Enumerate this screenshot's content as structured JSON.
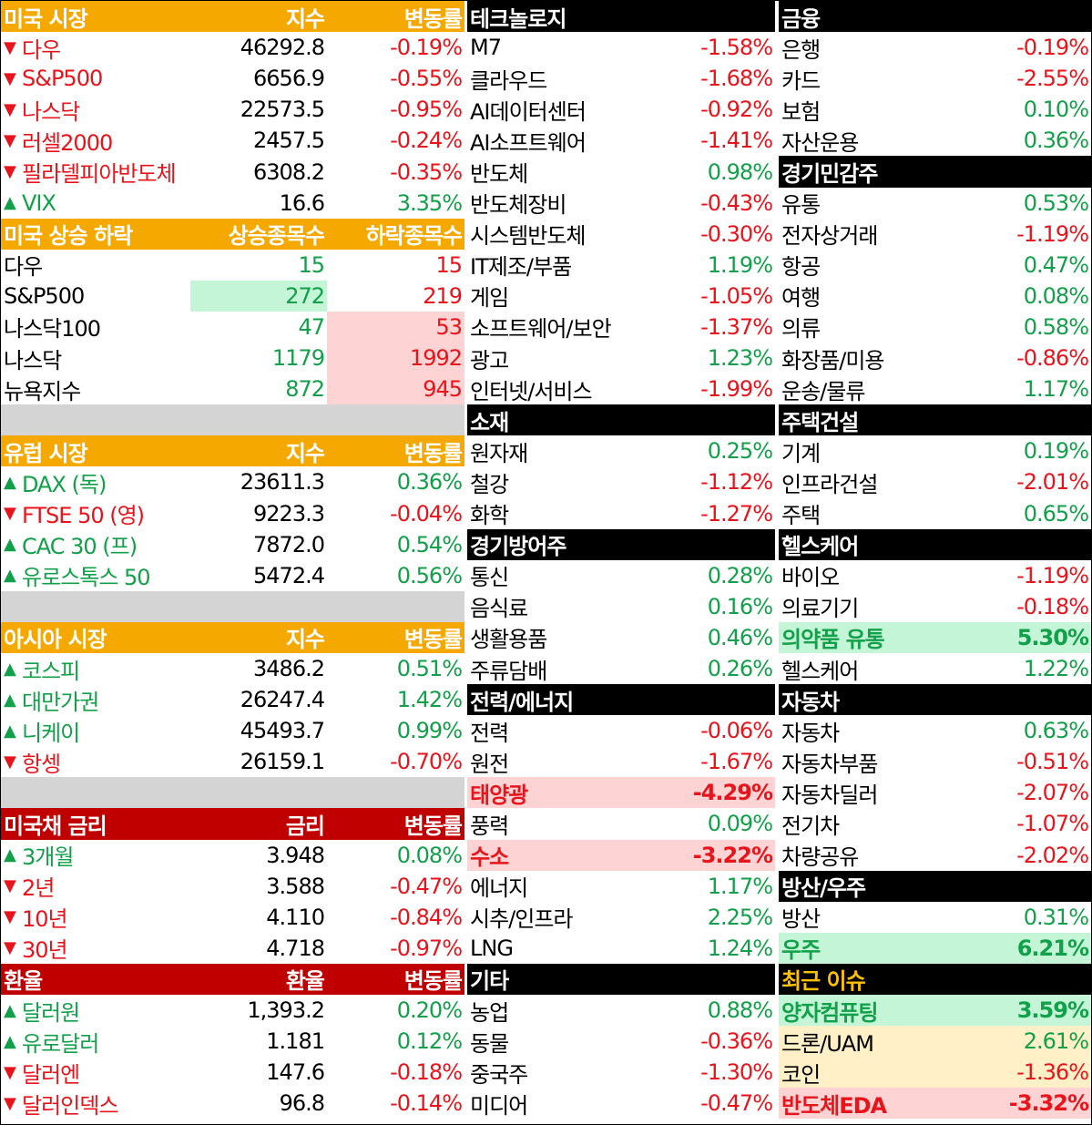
{
  "left": [
    {
      "kind": "header",
      "color": "orange",
      "cells": [
        "미국 시장",
        "지수",
        "변동률"
      ]
    },
    {
      "kind": "row",
      "dir": "down",
      "cells": [
        "다우",
        "46292.8",
        "-0.19%"
      ]
    },
    {
      "kind": "row",
      "dir": "down",
      "cells": [
        "S&P500",
        "6656.9",
        "-0.55%"
      ]
    },
    {
      "kind": "row",
      "dir": "down",
      "cells": [
        "나스닥",
        "22573.5",
        "-0.95%"
      ]
    },
    {
      "kind": "row",
      "dir": "down",
      "cells": [
        "러셀2000",
        "2457.5",
        "-0.24%"
      ]
    },
    {
      "kind": "row",
      "dir": "down",
      "cells": [
        "필라델피아반도체",
        "6308.2",
        "-0.35%"
      ]
    },
    {
      "kind": "row",
      "dir": "up",
      "cells": [
        "VIX",
        "16.6",
        "3.35%"
      ]
    },
    {
      "kind": "header",
      "color": "orange",
      "cells": [
        "미국 상승 하락",
        "상승종목수",
        "하락종목수"
      ]
    },
    {
      "kind": "breadth",
      "cells": [
        "다우",
        "15",
        "15"
      ],
      "hl": [
        null,
        null
      ]
    },
    {
      "kind": "breadth",
      "cells": [
        "S&P500",
        "272",
        "219"
      ],
      "hl": [
        "green",
        null
      ]
    },
    {
      "kind": "breadth",
      "cells": [
        "나스닥100",
        "47",
        "53"
      ],
      "hl": [
        null,
        "pink"
      ]
    },
    {
      "kind": "breadth",
      "cells": [
        "나스닥",
        "1179",
        "1992"
      ],
      "hl": [
        null,
        "pink"
      ]
    },
    {
      "kind": "breadth",
      "cells": [
        "뉴욕지수",
        "872",
        "945"
      ],
      "hl": [
        null,
        "pink"
      ]
    },
    {
      "kind": "spacer"
    },
    {
      "kind": "header",
      "color": "orange",
      "cells": [
        "유럽 시장",
        "지수",
        "변동률"
      ]
    },
    {
      "kind": "row",
      "dir": "up",
      "cells": [
        "DAX (독)",
        "23611.3",
        "0.36%"
      ]
    },
    {
      "kind": "row",
      "dir": "down",
      "cells": [
        "FTSE 50 (영)",
        "9223.3",
        "-0.04%"
      ]
    },
    {
      "kind": "row",
      "dir": "up",
      "cells": [
        "CAC 30 (프)",
        "7872.0",
        "0.54%"
      ]
    },
    {
      "kind": "row",
      "dir": "up",
      "cells": [
        "유로스톡스 50",
        "5472.4",
        "0.56%"
      ]
    },
    {
      "kind": "spacer"
    },
    {
      "kind": "header",
      "color": "orange",
      "cells": [
        "아시아 시장",
        "지수",
        "변동률"
      ]
    },
    {
      "kind": "row",
      "dir": "up",
      "cells": [
        "코스피",
        "3486.2",
        "0.51%"
      ]
    },
    {
      "kind": "row",
      "dir": "up",
      "cells": [
        "대만가권",
        "26247.4",
        "1.42%"
      ]
    },
    {
      "kind": "row",
      "dir": "up",
      "cells": [
        "니케이",
        "45493.7",
        "0.99%"
      ]
    },
    {
      "kind": "row",
      "dir": "down",
      "cells": [
        "항셍",
        "26159.1",
        "-0.70%"
      ]
    },
    {
      "kind": "spacer"
    },
    {
      "kind": "header",
      "color": "red",
      "cells": [
        "미국채 금리",
        "금리",
        "변동률"
      ]
    },
    {
      "kind": "row",
      "dir": "up",
      "cells": [
        "3개월",
        "3.948",
        "0.08%"
      ]
    },
    {
      "kind": "row",
      "dir": "down",
      "cells": [
        "2년",
        "3.588",
        "-0.47%"
      ]
    },
    {
      "kind": "row",
      "dir": "down",
      "cells": [
        "10년",
        "4.110",
        "-0.84%"
      ]
    },
    {
      "kind": "row",
      "dir": "down",
      "cells": [
        "30년",
        "4.718",
        "-0.97%"
      ]
    },
    {
      "kind": "header",
      "color": "red",
      "cells": [
        "환율",
        "환율",
        "변동률"
      ]
    },
    {
      "kind": "row",
      "dir": "up",
      "cells": [
        "달러원",
        "1,393.2",
        "0.20%"
      ]
    },
    {
      "kind": "row",
      "dir": "up",
      "cells": [
        "유로달러",
        "1.181",
        "0.12%"
      ]
    },
    {
      "kind": "row",
      "dir": "down",
      "cells": [
        "달러엔",
        "147.6",
        "-0.18%"
      ]
    },
    {
      "kind": "row",
      "dir": "down",
      "cells": [
        "달러인덱스",
        "96.8",
        "-0.14%"
      ]
    }
  ],
  "middle": [
    {
      "kind": "header",
      "cells": [
        "테크놀로지"
      ]
    },
    {
      "kind": "sector",
      "cells": [
        "M7",
        "-1.58%"
      ]
    },
    {
      "kind": "sector",
      "cells": [
        "클라우드",
        "-1.68%"
      ]
    },
    {
      "kind": "sector",
      "cells": [
        "AI데이터센터",
        "-0.92%"
      ]
    },
    {
      "kind": "sector",
      "cells": [
        "AI소프트웨어",
        "-1.41%"
      ]
    },
    {
      "kind": "sector",
      "cells": [
        "반도체",
        "0.98%"
      ]
    },
    {
      "kind": "sector",
      "cells": [
        "반도체장비",
        "-0.43%"
      ]
    },
    {
      "kind": "sector",
      "cells": [
        "시스템반도체",
        "-0.30%"
      ]
    },
    {
      "kind": "sector",
      "cells": [
        "IT제조/부품",
        "1.19%"
      ]
    },
    {
      "kind": "sector",
      "cells": [
        "게임",
        "-1.05%"
      ]
    },
    {
      "kind": "sector",
      "cells": [
        "소프트웨어/보안",
        "-1.37%"
      ]
    },
    {
      "kind": "sector",
      "cells": [
        "광고",
        "1.23%"
      ]
    },
    {
      "kind": "sector",
      "cells": [
        "인터넷/서비스",
        "-1.99%"
      ]
    },
    {
      "kind": "header",
      "cells": [
        "소재"
      ]
    },
    {
      "kind": "sector",
      "cells": [
        "원자재",
        "0.25%"
      ]
    },
    {
      "kind": "sector",
      "cells": [
        "철강",
        "-1.12%"
      ]
    },
    {
      "kind": "sector",
      "cells": [
        "화학",
        "-1.27%"
      ]
    },
    {
      "kind": "header",
      "cells": [
        "경기방어주"
      ]
    },
    {
      "kind": "sector",
      "cells": [
        "통신",
        "0.28%"
      ]
    },
    {
      "kind": "sector",
      "cells": [
        "음식료",
        "0.16%"
      ]
    },
    {
      "kind": "sector",
      "cells": [
        "생활용품",
        "0.46%"
      ]
    },
    {
      "kind": "sector",
      "cells": [
        "주류담배",
        "0.26%"
      ]
    },
    {
      "kind": "header",
      "cells": [
        "전력/에너지"
      ]
    },
    {
      "kind": "sector",
      "cells": [
        "전력",
        "-0.06%"
      ]
    },
    {
      "kind": "sector",
      "cells": [
        "원전",
        "-1.67%"
      ]
    },
    {
      "kind": "sector",
      "cells": [
        "태양광",
        "-4.29%"
      ],
      "hl": "pink"
    },
    {
      "kind": "sector",
      "cells": [
        "풍력",
        "0.09%"
      ]
    },
    {
      "kind": "sector",
      "cells": [
        "수소",
        "-3.22%"
      ],
      "hl": "pink"
    },
    {
      "kind": "sector",
      "cells": [
        "에너지",
        "1.17%"
      ]
    },
    {
      "kind": "sector",
      "cells": [
        "시추/인프라",
        "2.25%"
      ]
    },
    {
      "kind": "sector",
      "cells": [
        "LNG",
        "1.24%"
      ]
    },
    {
      "kind": "header",
      "cells": [
        "기타"
      ]
    },
    {
      "kind": "sector",
      "cells": [
        "농업",
        "0.88%"
      ]
    },
    {
      "kind": "sector",
      "cells": [
        "동물",
        "-0.36%"
      ]
    },
    {
      "kind": "sector",
      "cells": [
        "중국주",
        "-1.30%"
      ]
    },
    {
      "kind": "sector",
      "cells": [
        "미디어",
        "-0.47%"
      ]
    }
  ],
  "right": [
    {
      "kind": "header",
      "cells": [
        "금융"
      ]
    },
    {
      "kind": "sector",
      "cells": [
        "은행",
        "-0.19%"
      ]
    },
    {
      "kind": "sector",
      "cells": [
        "카드",
        "-2.55%"
      ]
    },
    {
      "kind": "sector",
      "cells": [
        "보험",
        "0.10%"
      ]
    },
    {
      "kind": "sector",
      "cells": [
        "자산운용",
        "0.36%"
      ]
    },
    {
      "kind": "header",
      "cells": [
        "경기민감주"
      ]
    },
    {
      "kind": "sector",
      "cells": [
        "유통",
        "0.53%"
      ]
    },
    {
      "kind": "sector",
      "cells": [
        "전자상거래",
        "-1.19%"
      ]
    },
    {
      "kind": "sector",
      "cells": [
        "항공",
        "0.47%"
      ]
    },
    {
      "kind": "sector",
      "cells": [
        "여행",
        "0.08%"
      ]
    },
    {
      "kind": "sector",
      "cells": [
        "의류",
        "0.58%"
      ]
    },
    {
      "kind": "sector",
      "cells": [
        "화장품/미용",
        "-0.86%"
      ]
    },
    {
      "kind": "sector",
      "cells": [
        "운송/물류",
        "1.17%"
      ]
    },
    {
      "kind": "header",
      "cells": [
        "주택건설"
      ]
    },
    {
      "kind": "sector",
      "cells": [
        "기계",
        "0.19%"
      ]
    },
    {
      "kind": "sector",
      "cells": [
        "인프라건설",
        "-2.01%"
      ]
    },
    {
      "kind": "sector",
      "cells": [
        "주택",
        "0.65%"
      ]
    },
    {
      "kind": "header",
      "cells": [
        "헬스케어"
      ]
    },
    {
      "kind": "sector",
      "cells": [
        "바이오",
        "-1.19%"
      ]
    },
    {
      "kind": "sector",
      "cells": [
        "의료기기",
        "-0.18%"
      ]
    },
    {
      "kind": "sector",
      "cells": [
        "의약품 유통",
        "5.30%"
      ],
      "hl": "green"
    },
    {
      "kind": "sector",
      "cells": [
        "헬스케어",
        "1.22%"
      ]
    },
    {
      "kind": "header",
      "cells": [
        "자동차"
      ]
    },
    {
      "kind": "sector",
      "cells": [
        "자동차",
        "0.63%"
      ]
    },
    {
      "kind": "sector",
      "cells": [
        "자동차부품",
        "-0.51%"
      ]
    },
    {
      "kind": "sector",
      "cells": [
        "자동차딜러",
        "-2.07%"
      ]
    },
    {
      "kind": "sector",
      "cells": [
        "전기차",
        "-1.07%"
      ]
    },
    {
      "kind": "sector",
      "cells": [
        "차량공유",
        "-2.02%"
      ]
    },
    {
      "kind": "header",
      "cells": [
        "방산/우주"
      ]
    },
    {
      "kind": "sector",
      "cells": [
        "방산",
        "0.31%"
      ]
    },
    {
      "kind": "sector",
      "cells": [
        "우주",
        "6.21%"
      ],
      "hl": "green"
    },
    {
      "kind": "header",
      "gold": true,
      "cells": [
        "최근 이슈"
      ]
    },
    {
      "kind": "sector",
      "cells": [
        "양자컴퓨팅",
        "3.59%"
      ],
      "hl": "green"
    },
    {
      "kind": "sector",
      "cells": [
        "드론/UAM",
        "2.61%"
      ],
      "hl": "yellow"
    },
    {
      "kind": "sector",
      "cells": [
        "코인",
        "-1.36%"
      ],
      "hl": "yellow"
    },
    {
      "kind": "sector",
      "cells": [
        "반도체EDA",
        "-3.32%"
      ],
      "hl": "pink"
    }
  ],
  "colors": {
    "orange_header": "#f5a800",
    "red_header": "#c00000",
    "black_header": "#000000",
    "up": "#12a04a",
    "down": "#e8141c",
    "gold": "#ffc000",
    "highlight_green": "#c3f5d6",
    "highlight_pink": "#fdd3d3",
    "highlight_yellow": "#fff0c7"
  },
  "icons": {
    "up": "triangle-up-icon",
    "down": "triangle-down-icon"
  }
}
